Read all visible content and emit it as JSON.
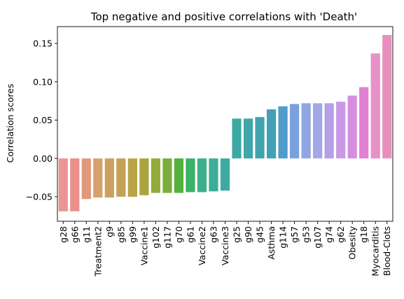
{
  "chart_data": {
    "type": "bar",
    "title": "Top negative and positive correlations with 'Death'",
    "xlabel": "",
    "ylabel": "Correlation scores",
    "ylim": [
      -0.082,
      0.172
    ],
    "yticks": [
      -0.05,
      0.0,
      0.05,
      0.1,
      0.15
    ],
    "ytick_labels": [
      "−0.05",
      "0.00",
      "0.05",
      "0.10",
      "0.15"
    ],
    "grid": false,
    "legend": "none",
    "categories": [
      "g28",
      "g66",
      "g11",
      "Treatment2",
      "g9",
      "g85",
      "g99",
      "Vaccine1",
      "g102",
      "g117",
      "g70",
      "g61",
      "Vaccine2",
      "g63",
      "Vaccine3",
      "g25",
      "g90",
      "g45",
      "Asthma",
      "g114",
      "g57",
      "g53",
      "g107",
      "g74",
      "g62",
      "Obesity",
      "g18",
      "Myocarditis",
      "Blood-Clots"
    ],
    "values": [
      -0.069,
      -0.069,
      -0.053,
      -0.051,
      -0.051,
      -0.05,
      -0.05,
      -0.048,
      -0.045,
      -0.045,
      -0.045,
      -0.044,
      -0.044,
      -0.043,
      -0.042,
      0.052,
      0.052,
      0.054,
      0.064,
      0.068,
      0.071,
      0.072,
      0.072,
      0.072,
      0.074,
      0.082,
      0.093,
      0.137,
      0.161
    ],
    "colors": [
      "#ea9594",
      "#e9908a",
      "#e2987a",
      "#d7a06c",
      "#cca160",
      "#c4a253",
      "#b9a448",
      "#a8a63f",
      "#95aa3c",
      "#7aad3c",
      "#52b03d",
      "#3bb16a",
      "#3daf8a",
      "#3dad97",
      "#3ea9a0",
      "#3ea8a5",
      "#40a6a9",
      "#40a4ad",
      "#44a0b5",
      "#4f9bcb",
      "#7aa0dd",
      "#8fa6e2",
      "#a4a8e6",
      "#b59fe6",
      "#c89ae6",
      "#d68fde",
      "#e07fd3",
      "#e691c7",
      "#e890bd"
    ]
  }
}
